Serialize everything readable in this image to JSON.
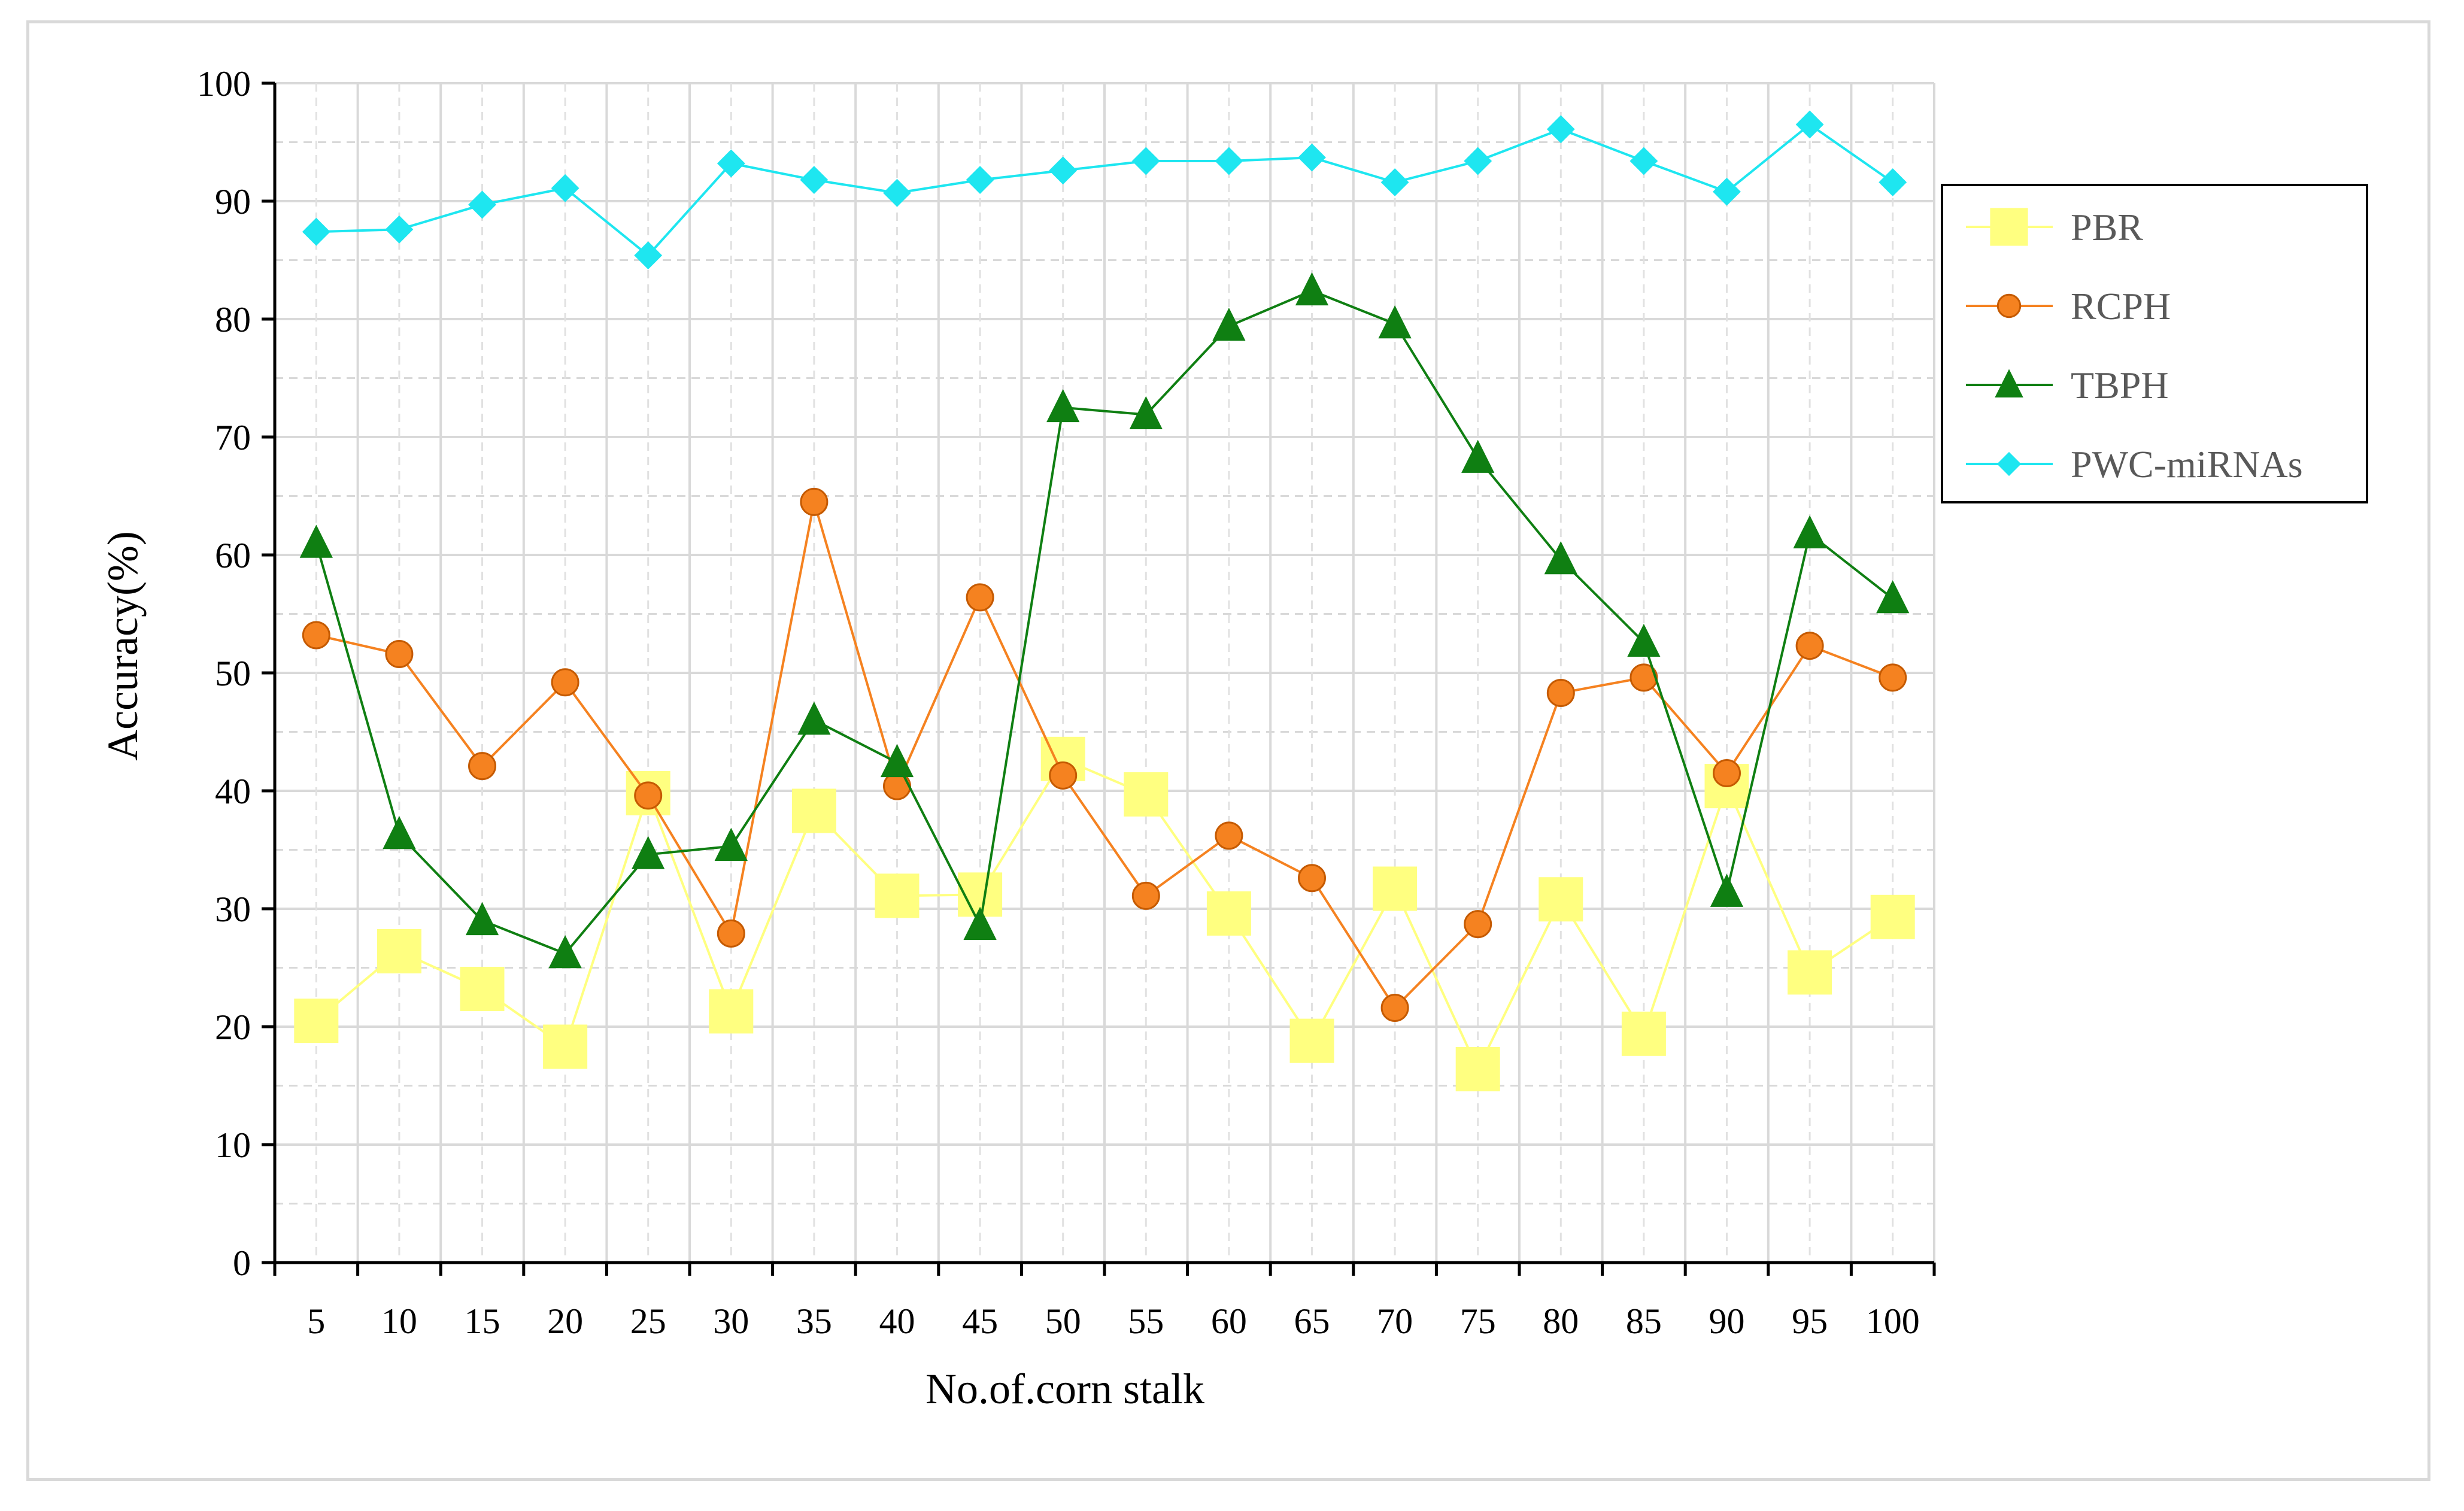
{
  "chart_data": {
    "type": "line",
    "title": "",
    "xlabel": "No.of.corn stalk",
    "ylabel": "Accuracy(%)",
    "ylim": [
      0,
      100
    ],
    "yticks": [
      0,
      10,
      20,
      30,
      40,
      50,
      60,
      70,
      80,
      90,
      100
    ],
    "grid": true,
    "legend_position": "right",
    "categories": [
      "5",
      "10",
      "15",
      "20",
      "25",
      "30",
      "35",
      "40",
      "45",
      "50",
      "55",
      "60",
      "65",
      "70",
      "75",
      "80",
      "85",
      "90",
      "95",
      "100"
    ],
    "series": [
      {
        "name": "PBR",
        "color": "#ffff80",
        "marker": "square",
        "values": [
          20.5,
          26.4,
          23.2,
          18.3,
          39.8,
          21.3,
          38.3,
          31.1,
          31.2,
          42.7,
          39.7,
          29.6,
          18.8,
          31.7,
          16.4,
          30.8,
          19.4,
          40.4,
          24.6,
          29.3
        ]
      },
      {
        "name": "RCPH",
        "color": "#f58220",
        "marker": "circle",
        "values": [
          53.2,
          51.6,
          42.1,
          49.2,
          39.6,
          27.9,
          64.5,
          40.4,
          56.4,
          41.3,
          31.1,
          36.2,
          32.6,
          21.6,
          28.7,
          48.3,
          49.6,
          41.5,
          52.3,
          49.6
        ]
      },
      {
        "name": "TBPH",
        "color": "#0f7f12",
        "marker": "triangle",
        "values": [
          61.0,
          36.3,
          29.0,
          26.2,
          34.6,
          35.3,
          46.0,
          42.4,
          28.6,
          72.5,
          71.9,
          79.4,
          82.4,
          79.6,
          68.2,
          59.6,
          52.6,
          31.4,
          61.8,
          56.3
        ]
      },
      {
        "name": "PWC-miRNAs",
        "color": "#1ee6f0",
        "marker": "diamond",
        "values": [
          87.4,
          87.6,
          89.7,
          91.1,
          85.4,
          93.2,
          91.8,
          90.7,
          91.8,
          92.6,
          93.4,
          93.4,
          93.7,
          91.6,
          93.4,
          96.1,
          93.4,
          90.8,
          96.5,
          91.6
        ]
      }
    ]
  }
}
